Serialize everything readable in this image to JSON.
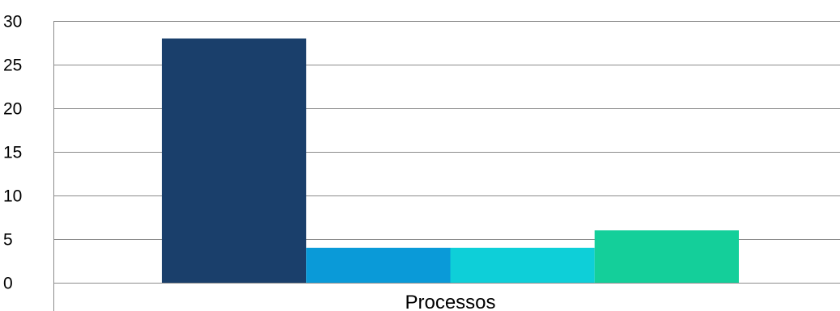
{
  "chart_data": {
    "type": "bar",
    "categories": [
      "Processos"
    ],
    "series": [
      {
        "values": [
          28
        ],
        "color": "#1a3f6b"
      },
      {
        "values": [
          4
        ],
        "color": "#0a9ad8"
      },
      {
        "values": [
          4
        ],
        "color": "#0ecfd8"
      },
      {
        "values": [
          6
        ],
        "color": "#14cf9a"
      }
    ],
    "ylim": [
      0,
      30
    ],
    "yticks": [
      "0",
      "5",
      "10",
      "15",
      "20",
      "25",
      "30"
    ],
    "grid": true,
    "legend": "none"
  }
}
